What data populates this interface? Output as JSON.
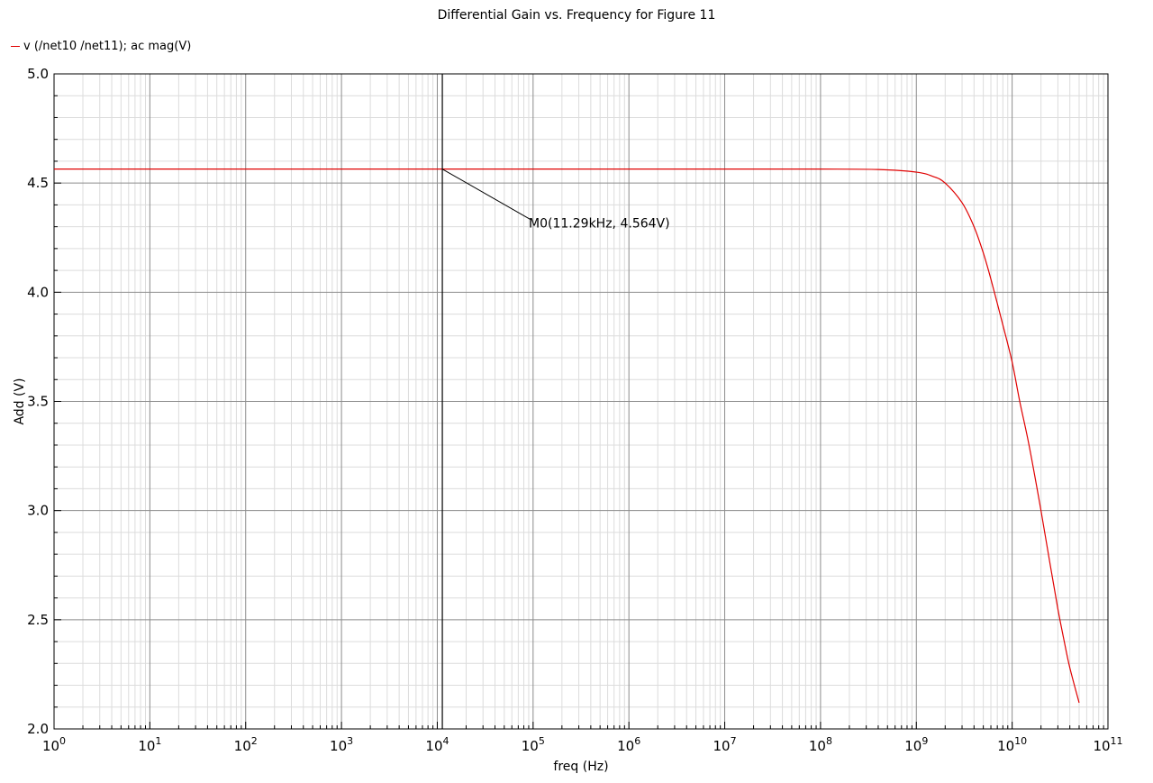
{
  "chart_data": {
    "type": "line",
    "title": "Differential Gain vs. Frequency for Figure 11",
    "xlabel": "freq (Hz)",
    "ylabel": "Add (V)",
    "x_scale": "log",
    "xlim": [
      1,
      100000000000
    ],
    "ylim": [
      2.0,
      5.0
    ],
    "grid": true,
    "legend_position": "top-left",
    "x_ticks": [
      {
        "base": "10",
        "exp": "0"
      },
      {
        "base": "10",
        "exp": "1"
      },
      {
        "base": "10",
        "exp": "2"
      },
      {
        "base": "10",
        "exp": "3"
      },
      {
        "base": "10",
        "exp": "4"
      },
      {
        "base": "10",
        "exp": "5"
      },
      {
        "base": "10",
        "exp": "6"
      },
      {
        "base": "10",
        "exp": "7"
      },
      {
        "base": "10",
        "exp": "8"
      },
      {
        "base": "10",
        "exp": "9"
      },
      {
        "base": "10",
        "exp": "10"
      },
      {
        "base": "10",
        "exp": "11"
      }
    ],
    "y_ticks": [
      "2.0",
      "2.5",
      "3.0",
      "3.5",
      "4.0",
      "4.5",
      "5.0"
    ],
    "series": [
      {
        "name": "v (/net10 /net11); ac mag(V)",
        "color": "#e00000",
        "x": [
          1,
          10,
          100,
          1000,
          10000,
          100000,
          1000000,
          10000000,
          100000000,
          400000000,
          1000000000,
          1500000000,
          2000000000,
          3000000000,
          4000000000,
          5000000000,
          6000000000,
          8000000000,
          10000000000,
          12000000000,
          15000000000,
          20000000000,
          25000000000,
          30000000000,
          35000000000,
          40000000000,
          50000000000
        ],
        "values": [
          4.564,
          4.564,
          4.564,
          4.564,
          4.564,
          4.564,
          4.564,
          4.564,
          4.564,
          4.562,
          4.55,
          4.53,
          4.5,
          4.41,
          4.3,
          4.18,
          4.06,
          3.85,
          3.68,
          3.5,
          3.3,
          3.0,
          2.75,
          2.55,
          2.4,
          2.28,
          2.12
        ]
      }
    ],
    "markers": [
      {
        "label": "M0(11.29kHz, 4.564V)",
        "x": 11290,
        "y": 4.564
      }
    ]
  }
}
